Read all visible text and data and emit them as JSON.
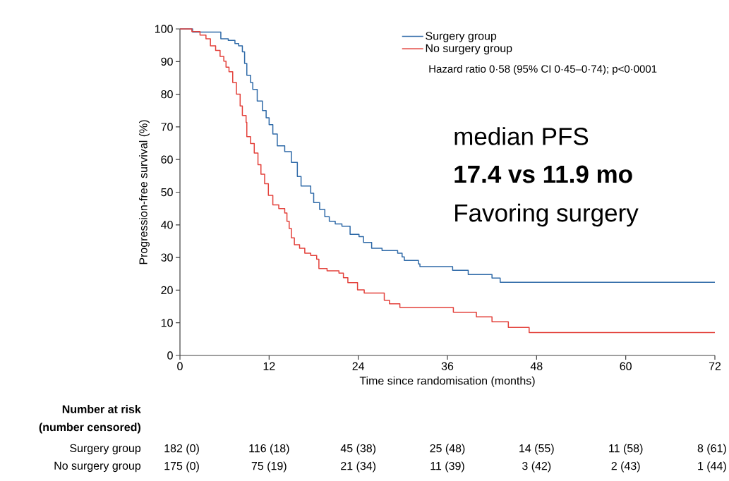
{
  "chart_data": {
    "type": "step",
    "xlabel": "Time since randomisation (months)",
    "ylabel": "Progression-free survival (%)",
    "xlim": [
      0,
      72
    ],
    "ylim": [
      0,
      100
    ],
    "xticks": [
      0,
      12,
      24,
      36,
      48,
      60,
      72
    ],
    "yticks": [
      0,
      10,
      20,
      30,
      40,
      50,
      60,
      70,
      80,
      90,
      100
    ],
    "legend": "top right",
    "series": [
      {
        "name": "Surgery group",
        "color": "#2f6aa8",
        "x": [
          0,
          1.7,
          5.5,
          6.5,
          7.4,
          7.9,
          8.4,
          8.7,
          9.0,
          9.5,
          9.8,
          10.4,
          11.1,
          11.6,
          12.0,
          12.5,
          13.1,
          14.1,
          15.0,
          15.8,
          16.3,
          17.6,
          18.0,
          18.8,
          19.5,
          20.1,
          20.9,
          21.8,
          22.9,
          24.1,
          24.7,
          25.8,
          27.2,
          29.3,
          29.9,
          30.2,
          32.1,
          32.3,
          36.7,
          38.8,
          42.0,
          43.1,
          72
        ],
        "values": [
          100,
          99,
          97,
          96.5,
          95.5,
          94.8,
          93,
          89.4,
          85.8,
          83.6,
          81.5,
          77.9,
          75,
          72.8,
          70.7,
          67.8,
          64.2,
          62.4,
          59.1,
          54.8,
          51.9,
          49.7,
          46.8,
          44.7,
          42.5,
          41.1,
          40.3,
          39.6,
          37.1,
          36.4,
          34.6,
          32.8,
          32.1,
          31.3,
          30.2,
          29.1,
          28,
          27.2,
          26.1,
          24.8,
          23.7,
          22.4,
          22.4
        ]
      },
      {
        "name": "No surgery group",
        "color": "#e3413b",
        "x": [
          0,
          1.6,
          2.7,
          3.5,
          4.1,
          4.8,
          5.4,
          5.9,
          6.2,
          6.6,
          7.1,
          7.6,
          8.1,
          8.4,
          8.9,
          9.0,
          9.5,
          10.0,
          10.5,
          10.9,
          11.4,
          11.9,
          12.5,
          13.3,
          14.1,
          14.4,
          14.7,
          15.0,
          15.4,
          16.1,
          16.8,
          17.6,
          18.4,
          18.7,
          19.8,
          21.4,
          22.0,
          22.6,
          23.9,
          24.8,
          27.5,
          28.2,
          29.6,
          36.8,
          39.9,
          42.0,
          44.2,
          47.0,
          72
        ],
        "values": [
          100,
          99.2,
          98.1,
          97,
          94.8,
          93.4,
          91.6,
          90.1,
          88.3,
          86.9,
          83.6,
          80,
          76.4,
          73.5,
          71.4,
          67,
          64.9,
          62,
          58.4,
          55.5,
          52.6,
          49,
          46.1,
          45,
          43.6,
          41.1,
          38.9,
          36,
          33.9,
          32.8,
          31.3,
          30.6,
          29.5,
          26.6,
          25.9,
          25.2,
          23.8,
          22.3,
          20.1,
          19.1,
          16.9,
          15.8,
          14.7,
          13.2,
          11.8,
          10.3,
          8.6,
          7,
          7
        ]
      }
    ],
    "annotations": [
      "Hazard ratio 0·58 (95% CI 0·45–0·74); p<0·0001",
      "median PFS",
      "17.4 vs 11.9 mo",
      "Favoring surgery",
      "Number at risk",
      "(number censored)",
      "Surgery group",
      "182 (0)",
      "116 (18)",
      "45 (38)",
      "25 (48)",
      "14 (55)",
      "11 (58)",
      "8 (61)",
      "No surgery group",
      "175 (0)",
      "75 (19)",
      "21 (34)",
      "11 (39)",
      "3 (42)",
      "2 (43)",
      "1 (44)"
    ]
  }
}
